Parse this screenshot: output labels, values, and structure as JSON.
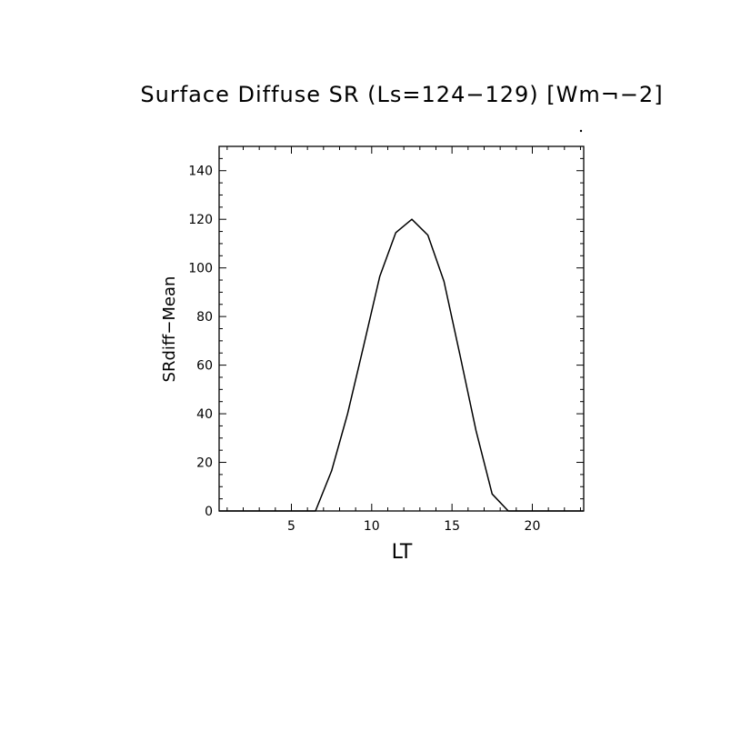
{
  "chart_data": {
    "type": "line",
    "title": "Surface Diffuse SR (Ls=124−129) [Wm¬−2]",
    "xlabel": "LT",
    "ylabel": "SRdiff−Mean",
    "xlim": [
      0.5,
      23.2
    ],
    "ylim": [
      0,
      150
    ],
    "x_ticks": [
      5,
      10,
      15,
      20
    ],
    "y_ticks": [
      0,
      20,
      40,
      60,
      80,
      100,
      120,
      140
    ],
    "x_minor_step": 1,
    "y_minor_step": 5,
    "grid": false,
    "series": [
      {
        "x": [
          0.5,
          1.5,
          2.5,
          3.5,
          4.5,
          5.5,
          6.5,
          7.5,
          8.5,
          9.5,
          10.5,
          11.5,
          12.5,
          13.5,
          14.5,
          15.5,
          16.5,
          17.5,
          18.5,
          19.5,
          20.5,
          21.5,
          22.5,
          23.2
        ],
        "values": [
          0,
          0,
          0,
          0,
          0,
          0,
          0,
          16.5,
          40,
          68,
          96.5,
          114.5,
          120,
          113.5,
          94.5,
          64,
          33,
          7,
          0,
          0,
          0,
          0,
          0,
          0
        ]
      }
    ],
    "colors": {
      "line": "#000000",
      "axes": "#000000",
      "background": "#ffffff"
    }
  }
}
